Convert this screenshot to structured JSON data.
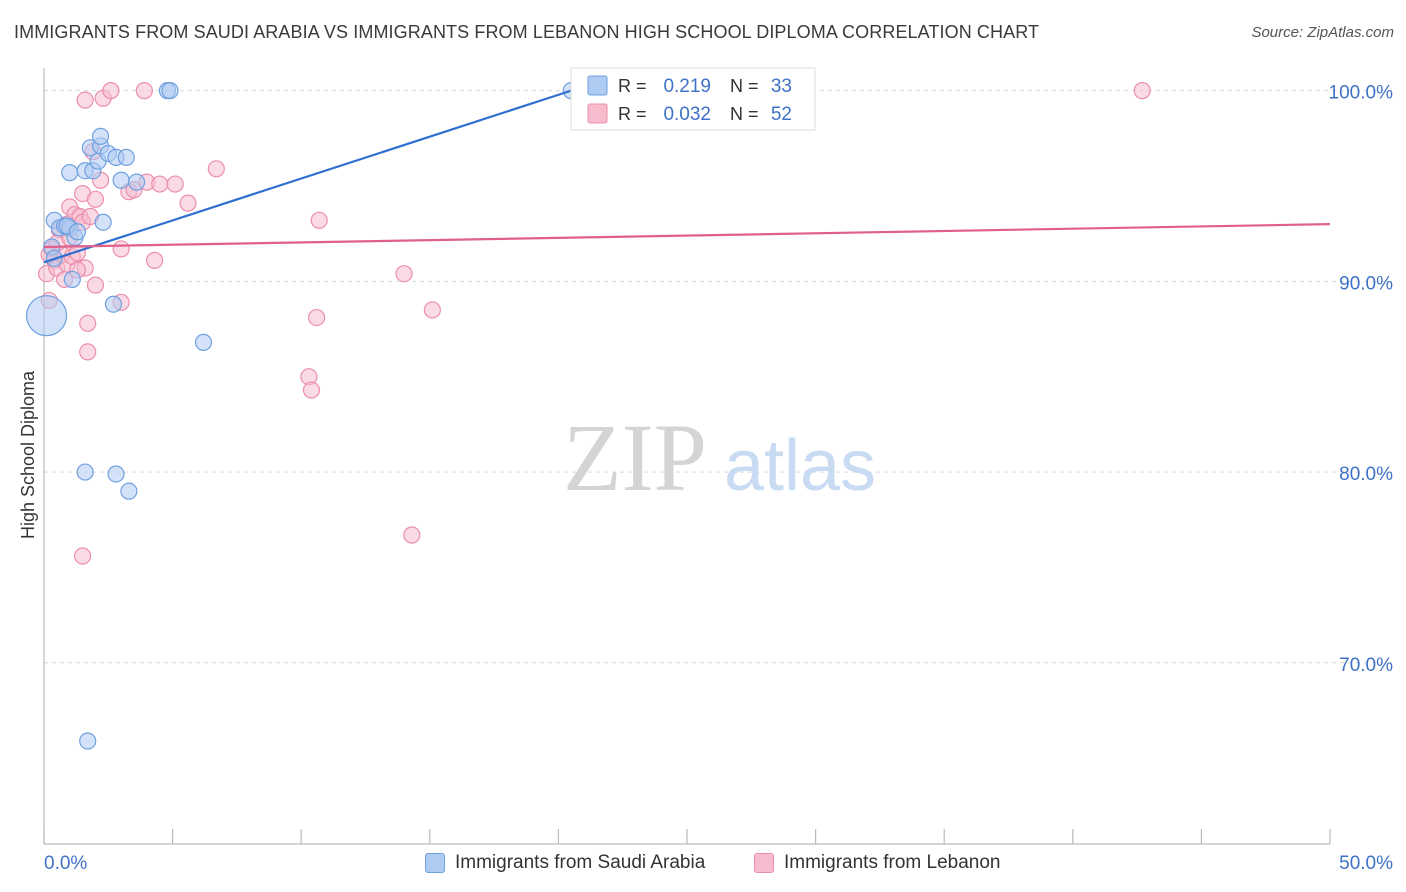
{
  "header": {
    "title": "IMMIGRANTS FROM SAUDI ARABIA VS IMMIGRANTS FROM LEBANON HIGH SCHOOL DIPLOMA CORRELATION CHART",
    "source": "Source: ZipAtlas.com"
  },
  "watermark": {
    "zip": "ZIP",
    "atlas": "atlas"
  },
  "colors": {
    "blue_fill": "#aecbf2",
    "blue_stroke": "#6fa0e0",
    "blue_line": "#2f6fd1",
    "pink_fill": "#f6bccd",
    "pink_stroke": "#ec8fab",
    "pink_line": "#e0608b",
    "value_text": "#3f72c6",
    "grid": "#d9d9d9"
  },
  "stats_box": {
    "rows": [
      {
        "r_label": "R =",
        "r_value": "0.219",
        "n_label": "N =",
        "n_value": "33",
        "series": "blue"
      },
      {
        "r_label": "R =",
        "r_value": "0.032",
        "n_label": "N =",
        "n_value": "52",
        "series": "pink"
      }
    ]
  },
  "legend": {
    "items": [
      {
        "label": "Immigrants from Saudi Arabia",
        "series": "blue"
      },
      {
        "label": "Immigrants from Lebanon",
        "series": "pink"
      }
    ]
  },
  "chart_data": {
    "type": "scatter",
    "title": "IMMIGRANTS FROM SAUDI ARABIA VS IMMIGRANTS FROM LEBANON HIGH SCHOOL DIPLOMA CORRELATION CHART",
    "xlabel": "",
    "ylabel": "High School Diploma",
    "xlim": [
      0,
      50
    ],
    "ylim": [
      60.5,
      101.5
    ],
    "x_tick_labels": [
      "0.0%",
      "50.0%"
    ],
    "y_ticks": [
      70,
      80,
      90,
      100
    ],
    "y_tick_labels": [
      "70.0%",
      "80.0%",
      "90.0%",
      "100.0%"
    ],
    "grid": true,
    "legend_position": "bottom",
    "series": [
      {
        "name": "Immigrants from Saudi Arabia",
        "color": "blue",
        "r": 0.219,
        "n": 33,
        "trend": {
          "x": [
            0,
            20.5
          ],
          "y": [
            91.0,
            100.0
          ]
        },
        "points": [
          {
            "x": 0.1,
            "y": 88.2,
            "big": true
          },
          {
            "x": 0.3,
            "y": 91.8
          },
          {
            "x": 0.4,
            "y": 91.2
          },
          {
            "x": 0.4,
            "y": 93.2
          },
          {
            "x": 0.6,
            "y": 92.8
          },
          {
            "x": 0.8,
            "y": 92.9
          },
          {
            "x": 1.0,
            "y": 95.7
          },
          {
            "x": 1.0,
            "y": 92.8
          },
          {
            "x": 1.1,
            "y": 90.1
          },
          {
            "x": 1.2,
            "y": 92.3
          },
          {
            "x": 1.6,
            "y": 95.8
          },
          {
            "x": 1.8,
            "y": 97.0
          },
          {
            "x": 1.9,
            "y": 95.8
          },
          {
            "x": 2.1,
            "y": 96.3
          },
          {
            "x": 2.2,
            "y": 97.1
          },
          {
            "x": 2.2,
            "y": 97.6
          },
          {
            "x": 2.3,
            "y": 93.1
          },
          {
            "x": 2.5,
            "y": 96.7
          },
          {
            "x": 2.7,
            "y": 88.8
          },
          {
            "x": 2.8,
            "y": 96.5
          },
          {
            "x": 3.0,
            "y": 95.3
          },
          {
            "x": 3.2,
            "y": 96.5
          },
          {
            "x": 3.6,
            "y": 95.2
          },
          {
            "x": 4.8,
            "y": 100.0
          },
          {
            "x": 4.9,
            "y": 100.0
          },
          {
            "x": 6.2,
            "y": 86.8
          },
          {
            "x": 1.6,
            "y": 80.0
          },
          {
            "x": 2.8,
            "y": 79.9
          },
          {
            "x": 3.3,
            "y": 79.0
          },
          {
            "x": 1.7,
            "y": 65.9
          },
          {
            "x": 0.9,
            "y": 92.9
          },
          {
            "x": 1.3,
            "y": 92.6
          },
          {
            "x": 20.5,
            "y": 100.0
          }
        ]
      },
      {
        "name": "Immigrants from Lebanon",
        "color": "pink",
        "r": 0.032,
        "n": 52,
        "trend": {
          "x": [
            0,
            50
          ],
          "y": [
            91.8,
            93.0
          ]
        },
        "points": [
          {
            "x": 0.1,
            "y": 90.4
          },
          {
            "x": 0.2,
            "y": 89.0
          },
          {
            "x": 0.3,
            "y": 91.7
          },
          {
            "x": 0.4,
            "y": 91.1
          },
          {
            "x": 0.5,
            "y": 90.7
          },
          {
            "x": 0.6,
            "y": 92.7
          },
          {
            "x": 0.7,
            "y": 91.4
          },
          {
            "x": 0.8,
            "y": 90.1
          },
          {
            "x": 0.9,
            "y": 93.0
          },
          {
            "x": 0.9,
            "y": 90.9
          },
          {
            "x": 1.0,
            "y": 93.9
          },
          {
            "x": 1.1,
            "y": 91.3
          },
          {
            "x": 1.2,
            "y": 93.5
          },
          {
            "x": 1.3,
            "y": 91.5
          },
          {
            "x": 1.4,
            "y": 93.4
          },
          {
            "x": 1.5,
            "y": 93.1
          },
          {
            "x": 1.5,
            "y": 94.6
          },
          {
            "x": 1.6,
            "y": 90.7
          },
          {
            "x": 1.6,
            "y": 99.5
          },
          {
            "x": 1.7,
            "y": 86.3
          },
          {
            "x": 1.7,
            "y": 87.8
          },
          {
            "x": 1.8,
            "y": 93.4
          },
          {
            "x": 1.9,
            "y": 96.8
          },
          {
            "x": 2.0,
            "y": 94.3
          },
          {
            "x": 2.0,
            "y": 89.8
          },
          {
            "x": 2.2,
            "y": 95.3
          },
          {
            "x": 2.3,
            "y": 99.6
          },
          {
            "x": 2.6,
            "y": 100.0
          },
          {
            "x": 3.0,
            "y": 91.7
          },
          {
            "x": 3.0,
            "y": 88.9
          },
          {
            "x": 3.3,
            "y": 94.7
          },
          {
            "x": 3.5,
            "y": 94.8
          },
          {
            "x": 3.9,
            "y": 100.0
          },
          {
            "x": 4.0,
            "y": 95.2
          },
          {
            "x": 4.3,
            "y": 91.1
          },
          {
            "x": 4.5,
            "y": 95.1
          },
          {
            "x": 5.1,
            "y": 95.1
          },
          {
            "x": 5.6,
            "y": 94.1
          },
          {
            "x": 6.7,
            "y": 95.9
          },
          {
            "x": 1.5,
            "y": 75.6
          },
          {
            "x": 10.3,
            "y": 85.0
          },
          {
            "x": 10.4,
            "y": 84.3
          },
          {
            "x": 10.6,
            "y": 88.1
          },
          {
            "x": 10.7,
            "y": 93.2
          },
          {
            "x": 14.0,
            "y": 90.4
          },
          {
            "x": 14.3,
            "y": 76.7
          },
          {
            "x": 15.1,
            "y": 88.5
          },
          {
            "x": 42.7,
            "y": 100.0
          },
          {
            "x": 0.5,
            "y": 92.0
          },
          {
            "x": 1.0,
            "y": 92.3
          },
          {
            "x": 1.3,
            "y": 90.6
          },
          {
            "x": 0.2,
            "y": 91.4
          }
        ]
      }
    ]
  }
}
